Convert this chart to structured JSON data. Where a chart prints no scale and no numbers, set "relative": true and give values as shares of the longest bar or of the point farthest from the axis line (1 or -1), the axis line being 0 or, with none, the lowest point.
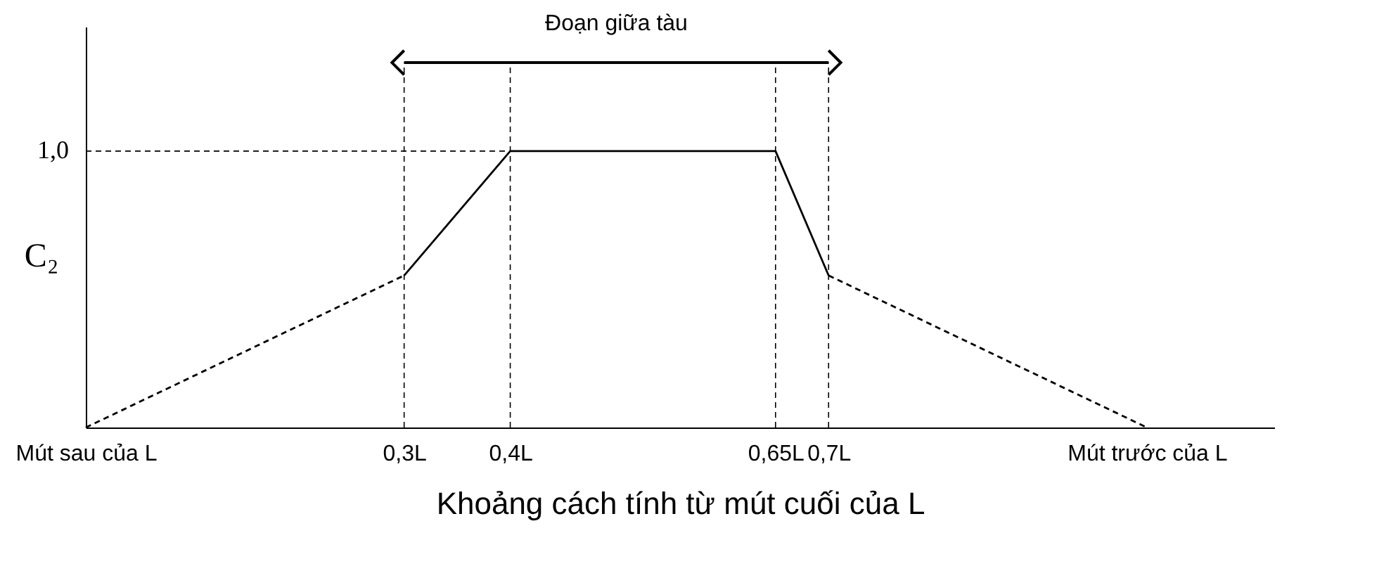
{
  "chart_data": {
    "type": "line",
    "relative": true,
    "xlabel": "Khoảng cách tính từ mút cuối của L",
    "ylabel": "C₂",
    "xlim": [
      0,
      1.12
    ],
    "xticks": [
      {
        "value": 0,
        "label": "Mút sau của L"
      },
      {
        "value": 0.3,
        "label": "0,3L"
      },
      {
        "value": 0.4,
        "label": "0,4L"
      },
      {
        "value": 0.65,
        "label": "0,65L"
      },
      {
        "value": 0.7,
        "label": "0,7L"
      },
      {
        "value": 1,
        "label": "Mút trước của L"
      }
    ],
    "series": [
      {
        "color": "#000000",
        "line_style": "dashed",
        "x": [
          0,
          0.3
        ],
        "values": [
          0,
          0.55
        ]
      },
      {
        "color": "#000000",
        "line_style": "solid",
        "x": [
          0.3,
          0.4,
          0.65,
          0.7
        ],
        "values": [
          0.55,
          1,
          1,
          0.55
        ]
      },
      {
        "color": "#000000",
        "line_style": "dashed",
        "x": [
          0.7,
          1
        ],
        "values": [
          0.55,
          0
        ]
      }
    ],
    "ref_lines": [
      {
        "axis": "x",
        "value": 0.3,
        "line_style": "dashed",
        "color": "#000000"
      },
      {
        "axis": "x",
        "value": 0.4,
        "line_style": "dashed",
        "color": "#000000"
      },
      {
        "axis": "x",
        "value": 0.65,
        "line_style": "dashed",
        "color": "#000000"
      },
      {
        "axis": "x",
        "value": 0.7,
        "line_style": "dashed",
        "color": "#000000"
      },
      {
        "axis": "y",
        "value": 1,
        "line_style": "dashed",
        "color": "#000000",
        "label": "1,0"
      }
    ],
    "annotations": [
      "Đoạn giữa tàu"
    ],
    "grid": false,
    "marker": "none"
  }
}
